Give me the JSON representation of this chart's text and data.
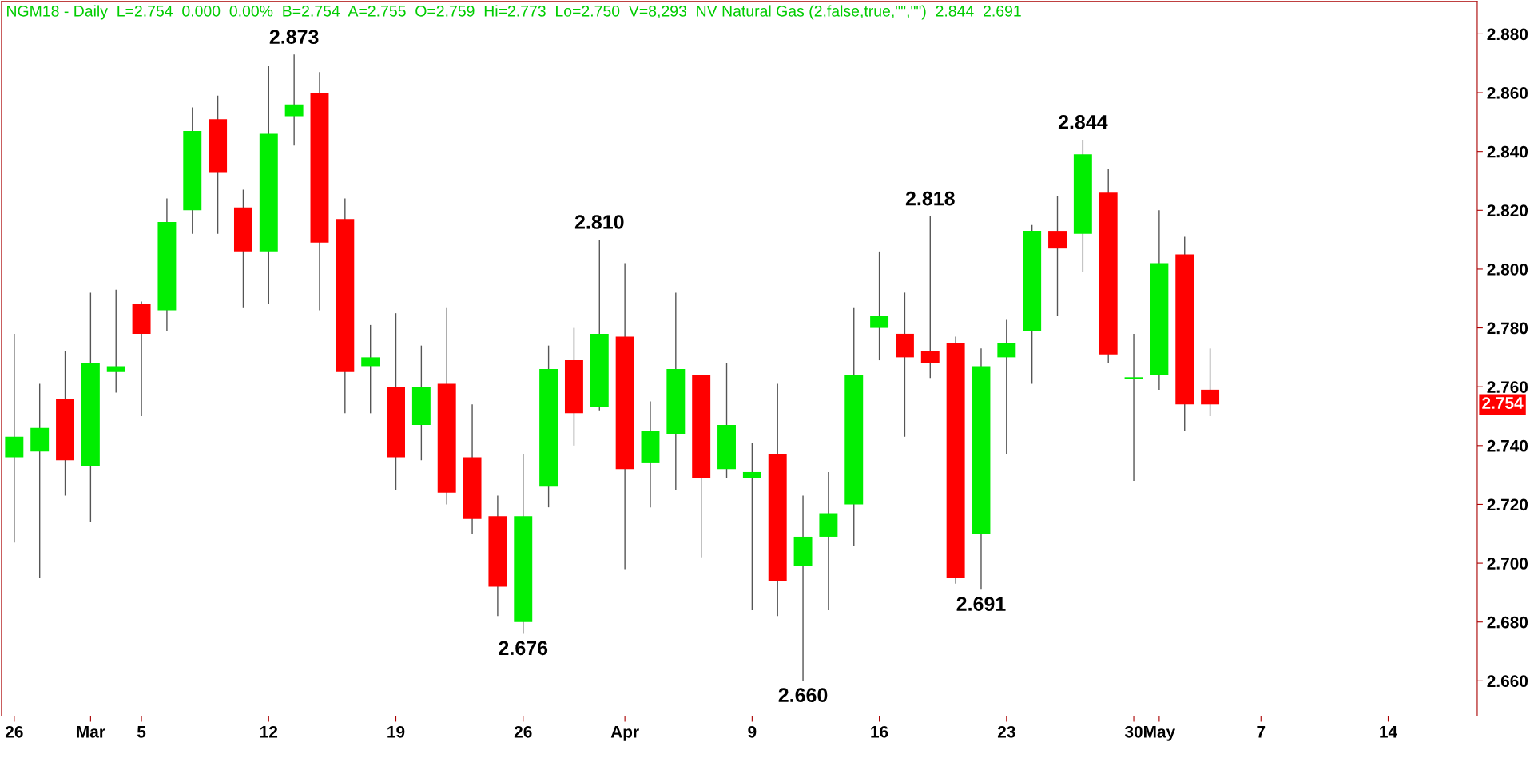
{
  "chart_data": {
    "type": "candlestick",
    "title": "NGM18 - Daily  L=2.754  0.000  0.00%  B=2.754  A=2.755  O=2.759  Hi=2.773  Lo=2.750  V=8,293  NV Natural Gas (2,false,true,\"\",\"\")  2.844  2.691",
    "categories": [
      "26",
      null,
      null,
      "Mar",
      null,
      "5",
      null,
      null,
      null,
      null,
      "12",
      null,
      null,
      null,
      null,
      "19",
      null,
      null,
      null,
      null,
      "26",
      null,
      null,
      null,
      "Apr",
      null,
      null,
      null,
      null,
      "9",
      null,
      null,
      null,
      null,
      "16",
      null,
      null,
      null,
      null,
      "23",
      null,
      null,
      null,
      null,
      "30",
      "May",
      null,
      null,
      null,
      "7",
      null,
      null,
      null,
      null,
      "14",
      null,
      null,
      null
    ],
    "ohlc": [
      [
        2.736,
        2.778,
        2.707,
        2.743
      ],
      [
        2.738,
        2.761,
        2.695,
        2.746
      ],
      [
        2.756,
        2.772,
        2.723,
        2.735
      ],
      [
        2.733,
        2.792,
        2.714,
        2.768
      ],
      [
        2.765,
        2.793,
        2.758,
        2.767
      ],
      [
        2.788,
        2.789,
        2.75,
        2.778
      ],
      [
        2.786,
        2.824,
        2.779,
        2.816
      ],
      [
        2.82,
        2.855,
        2.812,
        2.847
      ],
      [
        2.851,
        2.859,
        2.812,
        2.833
      ],
      [
        2.821,
        2.827,
        2.787,
        2.806
      ],
      [
        2.806,
        2.869,
        2.788,
        2.846
      ],
      [
        2.852,
        2.873,
        2.842,
        2.856
      ],
      [
        2.86,
        2.867,
        2.786,
        2.809
      ],
      [
        2.817,
        2.824,
        2.751,
        2.765
      ],
      [
        2.767,
        2.781,
        2.751,
        2.77
      ],
      [
        2.76,
        2.785,
        2.725,
        2.736
      ],
      [
        2.747,
        2.774,
        2.735,
        2.76
      ],
      [
        2.761,
        2.787,
        2.72,
        2.724
      ],
      [
        2.736,
        2.754,
        2.71,
        2.715
      ],
      [
        2.716,
        2.723,
        2.682,
        2.692
      ],
      [
        2.68,
        2.737,
        2.676,
        2.716
      ],
      [
        2.726,
        2.774,
        2.719,
        2.766
      ],
      [
        2.769,
        2.78,
        2.74,
        2.751
      ],
      [
        2.753,
        2.81,
        2.752,
        2.778
      ],
      [
        2.777,
        2.802,
        2.698,
        2.732
      ],
      [
        2.734,
        2.755,
        2.719,
        2.745
      ],
      [
        2.744,
        2.792,
        2.725,
        2.766
      ],
      [
        2.764,
        2.764,
        2.702,
        2.729
      ],
      [
        2.732,
        2.768,
        2.729,
        2.747
      ],
      [
        2.729,
        2.741,
        2.684,
        2.731
      ],
      [
        2.737,
        2.761,
        2.682,
        2.694
      ],
      [
        2.699,
        2.723,
        2.66,
        2.709
      ],
      [
        2.709,
        2.731,
        2.684,
        2.717
      ],
      [
        2.72,
        2.787,
        2.706,
        2.764
      ],
      [
        2.78,
        2.806,
        2.769,
        2.784
      ],
      [
        2.778,
        2.792,
        2.743,
        2.77
      ],
      [
        2.772,
        2.818,
        2.763,
        2.768
      ],
      [
        2.775,
        2.777,
        2.693,
        2.695
      ],
      [
        2.71,
        2.773,
        2.691,
        2.767
      ],
      [
        2.77,
        2.783,
        2.737,
        2.775
      ],
      [
        2.779,
        2.815,
        2.761,
        2.813
      ],
      [
        2.813,
        2.825,
        2.784,
        2.807
      ],
      [
        2.812,
        2.844,
        2.799,
        2.839
      ],
      [
        2.826,
        2.834,
        2.768,
        2.771
      ],
      [
        2.763,
        2.778,
        2.728,
        2.763
      ],
      [
        2.764,
        2.82,
        2.759,
        2.802
      ],
      [
        2.805,
        2.811,
        2.745,
        2.754
      ],
      [
        2.759,
        2.773,
        2.75,
        2.754
      ],
      null,
      null,
      null,
      null,
      null,
      null,
      null,
      null,
      null,
      null
    ],
    "colors": [
      "#00ee00",
      "#00ee00",
      "#ff0000",
      "#00ee00",
      "#00ee00",
      "#ff0000",
      "#00ee00",
      "#00ee00",
      "#ff0000",
      "#ff0000",
      "#00ee00",
      "#00ee00",
      "#ff0000",
      "#ff0000",
      "#00ee00",
      "#ff0000",
      "#00ee00",
      "#ff0000",
      "#ff0000",
      "#ff0000",
      "#00ee00",
      "#00ee00",
      "#ff0000",
      "#00ee00",
      "#ff0000",
      "#00ee00",
      "#00ee00",
      "#ff0000",
      "#00ee00",
      "#00ee00",
      "#ff0000",
      "#00ee00",
      "#00ee00",
      "#00ee00",
      "#00ee00",
      "#ff0000",
      "#ff0000",
      "#ff0000",
      "#00ee00",
      "#00ee00",
      "#00ee00",
      "#ff0000",
      "#00ee00",
      "#ff0000",
      "#00ee00",
      "#00ee00",
      "#ff0000",
      "#ff0000",
      null,
      null,
      null,
      null,
      null,
      null,
      null,
      null,
      null,
      null
    ],
    "ylim": [
      2.648,
      2.891
    ],
    "yticks": [
      {
        "value": 2.66,
        "label": "2.660"
      },
      {
        "value": 2.68,
        "label": "2.680"
      },
      {
        "value": 2.7,
        "label": "2.700"
      },
      {
        "value": 2.72,
        "label": "2.720"
      },
      {
        "value": 2.74,
        "label": "2.740"
      },
      {
        "value": 2.76,
        "label": "2.760"
      },
      {
        "value": 2.78,
        "label": "2.780"
      },
      {
        "value": 2.8,
        "label": "2.800"
      },
      {
        "value": 2.82,
        "label": "2.820"
      },
      {
        "value": 2.84,
        "label": "2.840"
      },
      {
        "value": 2.86,
        "label": "2.860"
      },
      {
        "value": 2.88,
        "label": "2.880"
      }
    ],
    "annotations": [
      {
        "text": "2.873",
        "y": 2.873
      },
      {
        "text": "2.810",
        "y": 2.81
      },
      {
        "text": "2.676",
        "y": 2.676
      },
      {
        "text": "2.660",
        "y": 2.66
      },
      {
        "text": "2.818",
        "y": 2.818
      },
      {
        "text": "2.691",
        "y": 2.691
      },
      {
        "text": "2.844",
        "y": 2.844
      },
      "2.754"
    ],
    "grid": false,
    "legend": false
  }
}
